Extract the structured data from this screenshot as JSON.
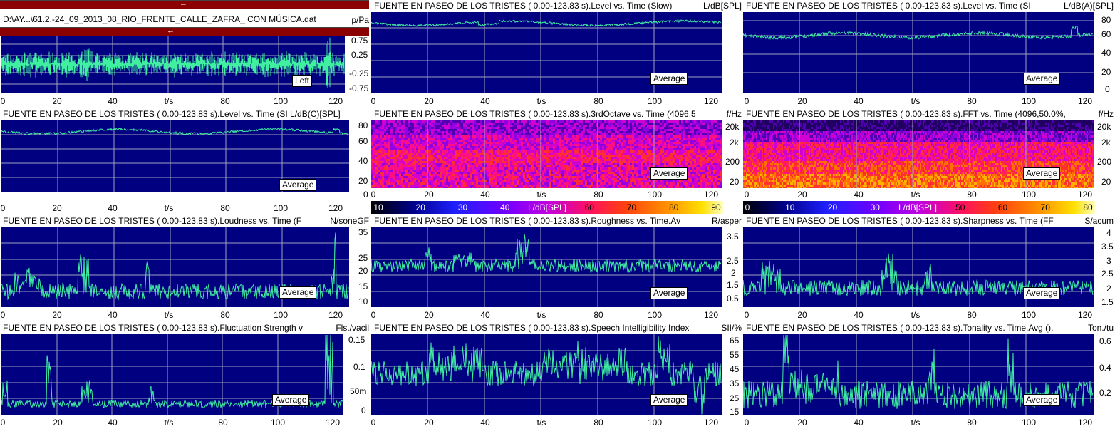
{
  "file_path": "D:\\AY...\\61.2.-24_09_2013_08_RIO_FRENTE_CALLE_ZAFRA_ CON MÚSICA.dat",
  "colors": {
    "plot_bg": "#000080",
    "trace": "#40f0a0",
    "grid": "#a0a0c0",
    "tbar": "#8b0000"
  },
  "icons": [
    "horizontal-resize-arrow-icon",
    "cursor-circle-icon"
  ],
  "panels": [
    {
      "title": "",
      "unit": "p/Pa",
      "badge": "Left",
      "xaxis": "t/s",
      "y_ticks": [
        "0.75",
        "0.25",
        "-0.25",
        "-0.75"
      ],
      "x_ticks": [
        "0",
        "20",
        "40",
        "80",
        "100",
        "120"
      ]
    },
    {
      "title": "FUENTE EN PASEO DE LOS TRISTES ( 0.00-123.83 s).Level vs. Time (Slow)",
      "unit": "L/dB[SPL]",
      "badge": "Average",
      "xaxis": "t/s",
      "y_ticks": [],
      "x_ticks": [
        "0",
        "20",
        "40",
        "80",
        "100",
        "120"
      ]
    },
    {
      "title": "FUENTE EN PASEO DE LOS TRISTES ( 0.00-123.83 s).Level vs. Time (SI",
      "unit": "L/dB(A)[SPL]",
      "badge": "Average",
      "xaxis": "t/s",
      "y_ticks": [
        "80",
        "60",
        "40",
        "20",
        "0"
      ],
      "x_ticks": [
        "0",
        "20",
        "40",
        "80",
        "100",
        "120"
      ]
    },
    {
      "title": "FUENTE EN PASEO DE LOS TRISTES ( 0.00-123.83 s).Level vs. Time (SI L/dB(C)[SPL]",
      "unit": "",
      "badge": "Average",
      "xaxis": "t/s",
      "y_ticks": [],
      "x_ticks": [
        "0",
        "20",
        "40",
        "80",
        "100",
        "120"
      ]
    },
    {
      "title": "FUENTE EN PASEO DE LOS TRISTES ( 0.00-123.83 s).3rdOctave vs. Time (4096,5",
      "unit": "f/Hz",
      "badge": "Average",
      "xaxis": "t/s",
      "y_ticks": [
        "80",
        "60",
        "40",
        "20",
        "0"
      ],
      "y_ticks_right": [
        "20k",
        "2k",
        "200",
        "20"
      ],
      "x_ticks": [
        "0",
        "20",
        "40",
        "80",
        "100",
        "120"
      ],
      "colorbar": [
        "10",
        "20",
        "30",
        "40",
        "L/dB[SPL]",
        "60",
        "70",
        "80",
        "90"
      ]
    },
    {
      "title": "FUENTE EN PASEO DE LOS TRISTES ( 0.00-123.83 s).FFT vs. Time (4096,50.0%,",
      "unit": "f/Hz",
      "badge": "Average",
      "xaxis": "t/s",
      "y_ticks_right": [
        "20k",
        "2k",
        "200",
        "20"
      ],
      "x_ticks": [
        "0",
        "20",
        "40",
        "80",
        "100",
        "120"
      ],
      "colorbar": [
        "0",
        "10",
        "20",
        "30",
        "L/dB[SPL]",
        "50",
        "60",
        "70",
        "80"
      ]
    },
    {
      "title": "FUENTE EN PASEO DE LOS TRISTES ( 0.00-123.83 s).Loudness vs. Time (F",
      "unit": "N/soneGF",
      "badge": "Average",
      "xaxis": "t/s",
      "y_ticks": [
        "35",
        "25",
        "20",
        "15",
        "10"
      ],
      "x_ticks": [
        "0",
        "20",
        "40",
        "80",
        "100",
        "120"
      ]
    },
    {
      "title": "FUENTE EN PASEO DE LOS TRISTES ( 0.00-123.83 s).Roughness vs. Time.Av",
      "unit": "R/asper",
      "badge": "Average",
      "xaxis": "t/s",
      "y_ticks": [
        "3.5",
        "2.5",
        "2",
        "1.5",
        "0.5"
      ],
      "x_ticks": [
        "0",
        "20",
        "40",
        "80",
        "100",
        "120"
      ]
    },
    {
      "title": "FUENTE EN PASEO DE LOS TRISTES ( 0.00-123.83 s).Sharpness vs. Time (FF",
      "unit": "S/acum",
      "badge": "Average",
      "xaxis": "t/s",
      "y_ticks": [
        "4",
        "3.5",
        "3",
        "2.5",
        "2",
        "1.5"
      ],
      "x_ticks": [
        "0",
        "20",
        "40",
        "80",
        "100",
        "120"
      ]
    },
    {
      "title": "FUENTE EN PASEO DE LOS TRISTES ( 0.00-123.83 s).Fluctuation Strength v",
      "unit": "Fls./vacil",
      "badge": "Average",
      "xaxis": "t/s",
      "y_ticks": [
        "0.15",
        "0.1",
        "50m",
        "0"
      ],
      "x_ticks": [
        "0",
        "20",
        "40",
        "80",
        "100",
        "120"
      ]
    },
    {
      "title": "FUENTE EN PASEO DE LOS TRISTES ( 0.00-123.83 s).Speech Intelligibility Index",
      "unit": "SII/%",
      "badge": "Average",
      "xaxis": "t/s",
      "y_ticks": [
        "65",
        "55",
        "45",
        "35",
        "25",
        "15"
      ],
      "x_ticks": [
        "0",
        "20",
        "40",
        "80",
        "100",
        "120"
      ]
    },
    {
      "title": "FUENTE EN PASEO DE LOS TRISTES ( 0.00-123.83 s).Tonality vs. Time.Avg ().",
      "unit": "Ton./tu",
      "badge": "Average",
      "xaxis": "t/s",
      "y_ticks": [
        "0.6",
        "0.4",
        "0.2"
      ],
      "x_ticks": [
        "0",
        "20",
        "40",
        "80",
        "100",
        "120"
      ]
    }
  ]
}
